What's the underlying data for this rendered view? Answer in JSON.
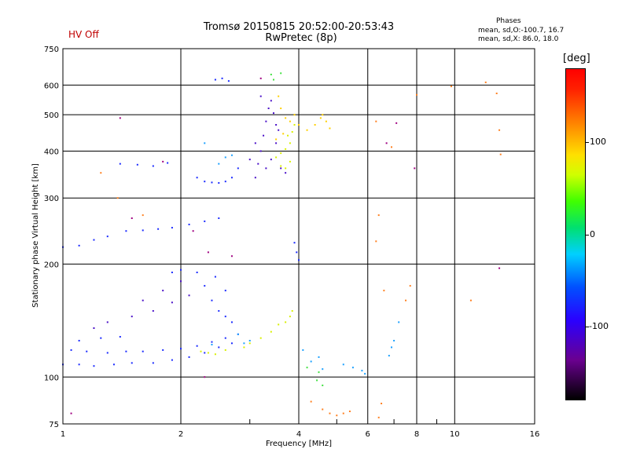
{
  "header": {
    "status": "HV Off",
    "title_line1": "Tromsø 20150815 20:52:00-20:53:43",
    "title_line2": "RwPretec (8p)",
    "stats_heading": "Phases",
    "stats_o": "mean, sd,O:-100.7, 16.7",
    "stats_x": "mean, sd,X:  86.0, 18.0"
  },
  "colorbar": {
    "unit_label": "[deg]",
    "ticks": [
      "100",
      "0",
      "-100"
    ],
    "tick_values": [
      100,
      0,
      -100
    ],
    "range": [
      -180,
      180
    ]
  },
  "chart_data": {
    "type": "scatter",
    "xlabel": "Frequency [MHz]",
    "ylabel": "Stationary phase Virtual Height [km]",
    "x_scale": "log",
    "y_scale": "log",
    "xlim": [
      1,
      16
    ],
    "ylim": [
      75,
      750
    ],
    "x_ticks": [
      1,
      2,
      4,
      6,
      8,
      10,
      16
    ],
    "x_tick_labels": [
      "1",
      "2",
      "4",
      "6",
      "8",
      "10",
      "16"
    ],
    "y_ticks": [
      75,
      100,
      200,
      300,
      400,
      500,
      600,
      750
    ],
    "y_tick_labels": [
      "75",
      "100",
      "200",
      "300",
      "400",
      "500",
      "600",
      "750"
    ],
    "grid": true,
    "series": [
      {
        "color": "#1a2aff",
        "points": [
          [
            1.0,
            108
          ],
          [
            1.1,
            108
          ],
          [
            1.2,
            107
          ],
          [
            1.35,
            108
          ],
          [
            1.5,
            109
          ],
          [
            1.7,
            109
          ],
          [
            1.9,
            111
          ],
          [
            2.1,
            113
          ],
          [
            2.3,
            116
          ],
          [
            2.5,
            120
          ],
          [
            2.7,
            123
          ],
          [
            1.05,
            118
          ],
          [
            1.15,
            117
          ],
          [
            1.3,
            116
          ],
          [
            1.45,
            117
          ],
          [
            1.6,
            117
          ],
          [
            1.8,
            118
          ],
          [
            2.0,
            119
          ],
          [
            2.2,
            121
          ],
          [
            2.4,
            124
          ],
          [
            2.6,
            127
          ],
          [
            2.8,
            130
          ],
          [
            1.1,
            125
          ],
          [
            1.25,
            127
          ],
          [
            1.4,
            128
          ],
          [
            1.0,
            222
          ],
          [
            1.1,
            224
          ],
          [
            1.2,
            232
          ],
          [
            1.3,
            237
          ],
          [
            1.45,
            245
          ],
          [
            1.6,
            246
          ],
          [
            1.75,
            248
          ],
          [
            1.9,
            250
          ],
          [
            2.1,
            255
          ],
          [
            2.3,
            260
          ],
          [
            2.5,
            265
          ],
          [
            1.4,
            370
          ],
          [
            1.55,
            368
          ],
          [
            1.7,
            365
          ],
          [
            1.85,
            372
          ],
          [
            2.2,
            340
          ],
          [
            2.3,
            332
          ],
          [
            2.4,
            330
          ],
          [
            2.5,
            329
          ],
          [
            2.6,
            332
          ],
          [
            2.7,
            340
          ],
          [
            2.8,
            360
          ],
          [
            2.45,
            620
          ],
          [
            2.55,
            625
          ],
          [
            2.65,
            615
          ],
          [
            2.2,
            190
          ],
          [
            2.3,
            175
          ],
          [
            2.4,
            160
          ],
          [
            2.5,
            150
          ],
          [
            2.6,
            145
          ],
          [
            2.7,
            140
          ],
          [
            2.6,
            170
          ],
          [
            2.45,
            185
          ],
          [
            1.9,
            190
          ],
          [
            2.0,
            193
          ],
          [
            4.0,
            205
          ],
          [
            3.95,
            215
          ],
          [
            3.9,
            228
          ]
        ]
      },
      {
        "color": "#4a10c8",
        "points": [
          [
            3.1,
            340
          ],
          [
            3.15,
            370
          ],
          [
            3.2,
            400
          ],
          [
            3.25,
            440
          ],
          [
            3.3,
            480
          ],
          [
            3.35,
            520
          ],
          [
            3.2,
            560
          ],
          [
            3.4,
            545
          ],
          [
            3.45,
            505
          ],
          [
            3.5,
            470
          ],
          [
            3.55,
            455
          ],
          [
            3.1,
            420
          ],
          [
            3.0,
            380
          ],
          [
            3.3,
            360
          ],
          [
            3.4,
            380
          ],
          [
            3.5,
            420
          ],
          [
            1.2,
            135
          ],
          [
            1.3,
            140
          ],
          [
            1.5,
            145
          ],
          [
            1.7,
            150
          ],
          [
            1.9,
            158
          ],
          [
            2.1,
            165
          ],
          [
            2.0,
            180
          ],
          [
            1.8,
            170
          ],
          [
            1.6,
            160
          ],
          [
            3.6,
            360
          ],
          [
            3.7,
            350
          ]
        ]
      },
      {
        "color": "#1aa0ff",
        "points": [
          [
            2.5,
            370
          ],
          [
            2.6,
            385
          ],
          [
            2.7,
            390
          ],
          [
            2.3,
            420
          ],
          [
            2.9,
            123
          ],
          [
            3.0,
            125
          ],
          [
            2.4,
            122
          ],
          [
            2.8,
            130
          ],
          [
            4.1,
            118
          ],
          [
            4.3,
            110
          ],
          [
            4.6,
            105
          ],
          [
            5.2,
            108
          ],
          [
            5.5,
            106
          ],
          [
            5.8,
            104
          ],
          [
            5.9,
            102
          ],
          [
            4.5,
            113
          ],
          [
            6.9,
            120
          ],
          [
            7.0,
            125
          ],
          [
            6.8,
            114
          ],
          [
            7.2,
            140
          ]
        ]
      },
      {
        "color": "#d8f000",
        "points": [
          [
            2.25,
            117
          ],
          [
            2.35,
            116
          ],
          [
            2.45,
            115
          ],
          [
            2.6,
            118
          ],
          [
            2.9,
            120
          ],
          [
            3.0,
            123
          ],
          [
            3.2,
            127
          ],
          [
            3.4,
            132
          ],
          [
            3.55,
            138
          ],
          [
            3.7,
            140
          ],
          [
            3.8,
            145
          ],
          [
            3.85,
            150
          ],
          [
            3.5,
            385
          ],
          [
            3.6,
            395
          ],
          [
            3.7,
            405
          ],
          [
            3.8,
            420
          ],
          [
            3.85,
            450
          ],
          [
            3.9,
            470
          ],
          [
            3.75,
            440
          ],
          [
            3.6,
            365
          ],
          [
            3.7,
            360
          ],
          [
            3.8,
            375
          ]
        ]
      },
      {
        "color": "#ffd000",
        "points": [
          [
            3.55,
            560
          ],
          [
            3.6,
            520
          ],
          [
            3.7,
            490
          ],
          [
            3.8,
            480
          ],
          [
            3.9,
            500
          ],
          [
            4.0,
            470
          ],
          [
            4.2,
            455
          ],
          [
            4.4,
            470
          ],
          [
            4.55,
            490
          ],
          [
            4.6,
            500
          ],
          [
            4.7,
            480
          ],
          [
            4.8,
            460
          ],
          [
            3.5,
            430
          ],
          [
            3.65,
            445
          ]
        ]
      },
      {
        "color": "#40e040",
        "points": [
          [
            3.4,
            640
          ],
          [
            3.45,
            620
          ],
          [
            3.6,
            645
          ],
          [
            4.45,
            98
          ],
          [
            4.6,
            95
          ],
          [
            4.5,
            103
          ],
          [
            4.2,
            106
          ]
        ]
      },
      {
        "color": "#ff8020",
        "points": [
          [
            4.6,
            82
          ],
          [
            4.8,
            80
          ],
          [
            5.0,
            79
          ],
          [
            5.2,
            80
          ],
          [
            5.4,
            81
          ],
          [
            4.3,
            86
          ],
          [
            6.5,
            85
          ],
          [
            6.4,
            78
          ],
          [
            6.4,
            270
          ],
          [
            6.3,
            230
          ],
          [
            6.6,
            170
          ],
          [
            7.5,
            160
          ],
          [
            7.7,
            175
          ],
          [
            11.0,
            160
          ],
          [
            12.0,
            610
          ],
          [
            12.8,
            570
          ],
          [
            13.0,
            455
          ],
          [
            13.1,
            392
          ],
          [
            8.0,
            565
          ],
          [
            6.9,
            410
          ],
          [
            6.3,
            480
          ],
          [
            9.8,
            595
          ],
          [
            1.38,
            300
          ],
          [
            1.6,
            270
          ],
          [
            1.25,
            350
          ]
        ]
      },
      {
        "color": "#a00080",
        "points": [
          [
            1.05,
            80
          ],
          [
            1.4,
            490
          ],
          [
            1.5,
            265
          ],
          [
            1.8,
            375
          ],
          [
            2.15,
            245
          ],
          [
            2.35,
            215
          ],
          [
            2.7,
            210
          ],
          [
            3.2,
            625
          ],
          [
            6.7,
            420
          ],
          [
            7.1,
            475
          ],
          [
            7.9,
            360
          ],
          [
            13.0,
            195
          ],
          [
            2.3,
            100
          ]
        ]
      }
    ]
  }
}
